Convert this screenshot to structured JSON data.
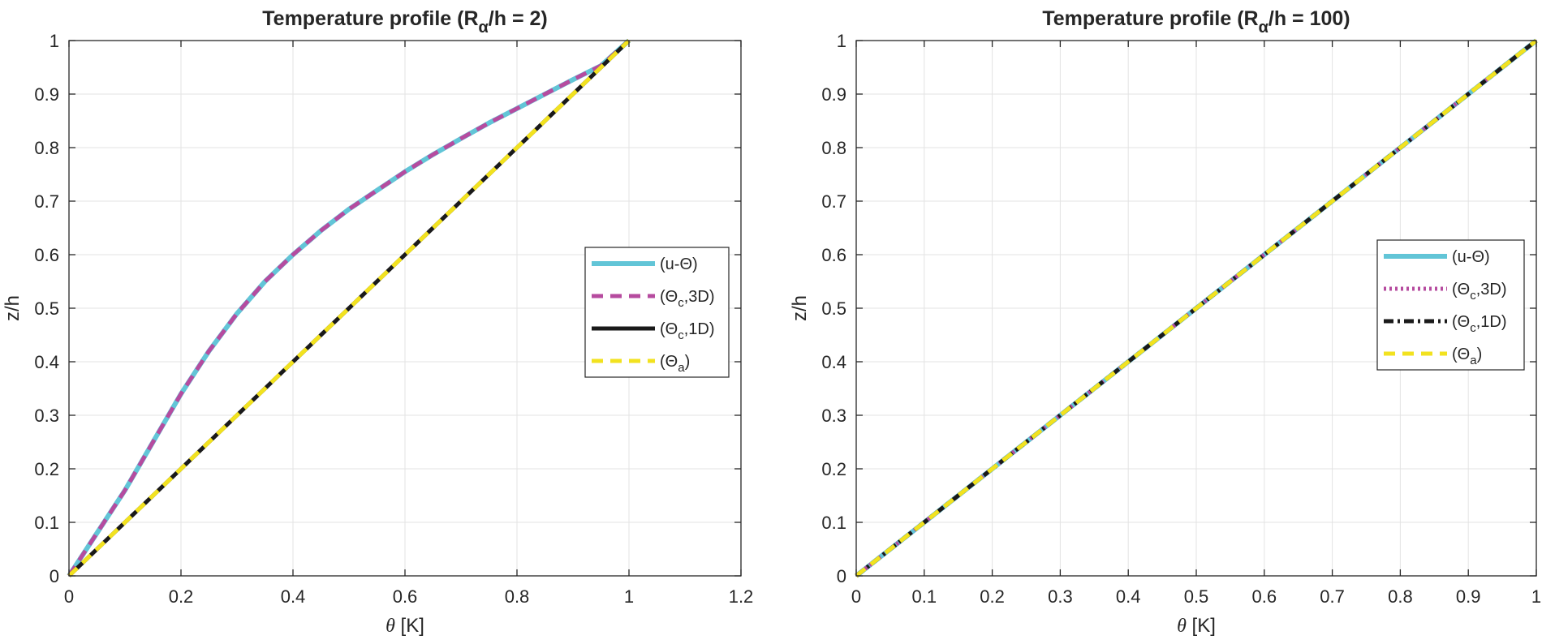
{
  "chart_data": [
    {
      "type": "line",
      "title": {
        "main": "Temperature profile (R",
        "sub": "α",
        "rest": "/h = 2)"
      },
      "xlabel": {
        "symbol": "θ",
        "unit": " [K]"
      },
      "ylabel": "z/h",
      "xlim": [
        0,
        1.2
      ],
      "ylim": [
        0,
        1
      ],
      "xticks": [
        0,
        0.2,
        0.4,
        0.6,
        0.8,
        1,
        1.2
      ],
      "xtick_labels": [
        "0",
        "0.2",
        "0.4",
        "0.6",
        "0.8",
        "1",
        "1.2"
      ],
      "yticks": [
        0,
        0.1,
        0.2,
        0.3,
        0.4,
        0.5,
        0.6,
        0.7,
        0.8,
        0.9,
        1
      ],
      "ytick_labels": [
        "0",
        "0.1",
        "0.2",
        "0.3",
        "0.4",
        "0.5",
        "0.6",
        "0.7",
        "0.8",
        "0.9",
        "1"
      ],
      "grid": true,
      "legend_position": "right-middle",
      "series": [
        {
          "name": "(u-Θ)",
          "label": {
            "pre": "(u-Θ)",
            "sub": "",
            "post": ""
          },
          "color": "#62C5D7",
          "style": "solid",
          "x": [
            0,
            0.05,
            0.1,
            0.15,
            0.2,
            0.25,
            0.3,
            0.35,
            0.4,
            0.45,
            0.5,
            0.55,
            0.6,
            0.65,
            0.7,
            0.75,
            0.8,
            0.85,
            0.9,
            0.95,
            1.0
          ],
          "y": [
            0,
            0.08,
            0.16,
            0.25,
            0.34,
            0.42,
            0.49,
            0.55,
            0.6,
            0.645,
            0.685,
            0.72,
            0.755,
            0.787,
            0.817,
            0.846,
            0.873,
            0.9,
            0.927,
            0.953,
            1.0
          ]
        },
        {
          "name": "(Θc,3D)",
          "label": {
            "pre": "(Θ",
            "sub": "c",
            "post": ",3D)"
          },
          "color": "#B64B9F",
          "style": "dashed",
          "x": [
            0,
            0.05,
            0.1,
            0.15,
            0.2,
            0.25,
            0.3,
            0.35,
            0.4,
            0.45,
            0.5,
            0.55,
            0.6,
            0.65,
            0.7,
            0.75,
            0.8,
            0.85,
            0.9,
            0.95,
            1.0
          ],
          "y": [
            0,
            0.08,
            0.16,
            0.25,
            0.34,
            0.42,
            0.49,
            0.55,
            0.6,
            0.645,
            0.685,
            0.72,
            0.755,
            0.787,
            0.817,
            0.846,
            0.873,
            0.9,
            0.927,
            0.953,
            1.0
          ]
        },
        {
          "name": "(Θc,1D)",
          "label": {
            "pre": "(Θ",
            "sub": "c",
            "post": ",1D)"
          },
          "color": "#1A1A1A",
          "style": "solid",
          "x": [
            0,
            1
          ],
          "y": [
            0,
            1
          ]
        },
        {
          "name": "(Θa)",
          "label": {
            "pre": "(Θ",
            "sub": "a",
            "post": ")"
          },
          "color": "#F2E21F",
          "style": "dashed",
          "x": [
            0,
            1
          ],
          "y": [
            0,
            1
          ]
        }
      ]
    },
    {
      "type": "line",
      "title": {
        "main": "Temperature profile (R",
        "sub": "α",
        "rest": "/h = 100)"
      },
      "xlabel": {
        "symbol": "θ",
        "unit": " [K]"
      },
      "ylabel": "z/h",
      "xlim": [
        0,
        1
      ],
      "ylim": [
        0,
        1
      ],
      "xticks": [
        0,
        0.1,
        0.2,
        0.3,
        0.4,
        0.5,
        0.6,
        0.7,
        0.8,
        0.9,
        1
      ],
      "xtick_labels": [
        "0",
        "0.1",
        "0.2",
        "0.3",
        "0.4",
        "0.5",
        "0.6",
        "0.7",
        "0.8",
        "0.9",
        "1"
      ],
      "yticks": [
        0,
        0.1,
        0.2,
        0.3,
        0.4,
        0.5,
        0.6,
        0.7,
        0.8,
        0.9,
        1
      ],
      "ytick_labels": [
        "0",
        "0.1",
        "0.2",
        "0.3",
        "0.4",
        "0.5",
        "0.6",
        "0.7",
        "0.8",
        "0.9",
        "1"
      ],
      "grid": true,
      "legend_position": "right-middle",
      "series": [
        {
          "name": "(u-Θ)",
          "label": {
            "pre": "(u-Θ)",
            "sub": "",
            "post": ""
          },
          "color": "#62C5D7",
          "style": "solid",
          "x": [
            0,
            1
          ],
          "y": [
            0,
            1
          ]
        },
        {
          "name": "(Θc,3D)",
          "label": {
            "pre": "(Θ",
            "sub": "c",
            "post": ",3D)"
          },
          "color": "#B64B9F",
          "style": "dotted",
          "x": [
            0,
            1
          ],
          "y": [
            0,
            1
          ]
        },
        {
          "name": "(Θc,1D)",
          "label": {
            "pre": "(Θ",
            "sub": "c",
            "post": ",1D)"
          },
          "color": "#1A1A1A",
          "style": "dashdot",
          "x": [
            0,
            1
          ],
          "y": [
            0,
            1
          ]
        },
        {
          "name": "(Θa)",
          "label": {
            "pre": "(Θ",
            "sub": "a",
            "post": ")"
          },
          "color": "#F2E21F",
          "style": "dashed",
          "x": [
            0,
            1
          ],
          "y": [
            0,
            1
          ]
        }
      ]
    }
  ]
}
